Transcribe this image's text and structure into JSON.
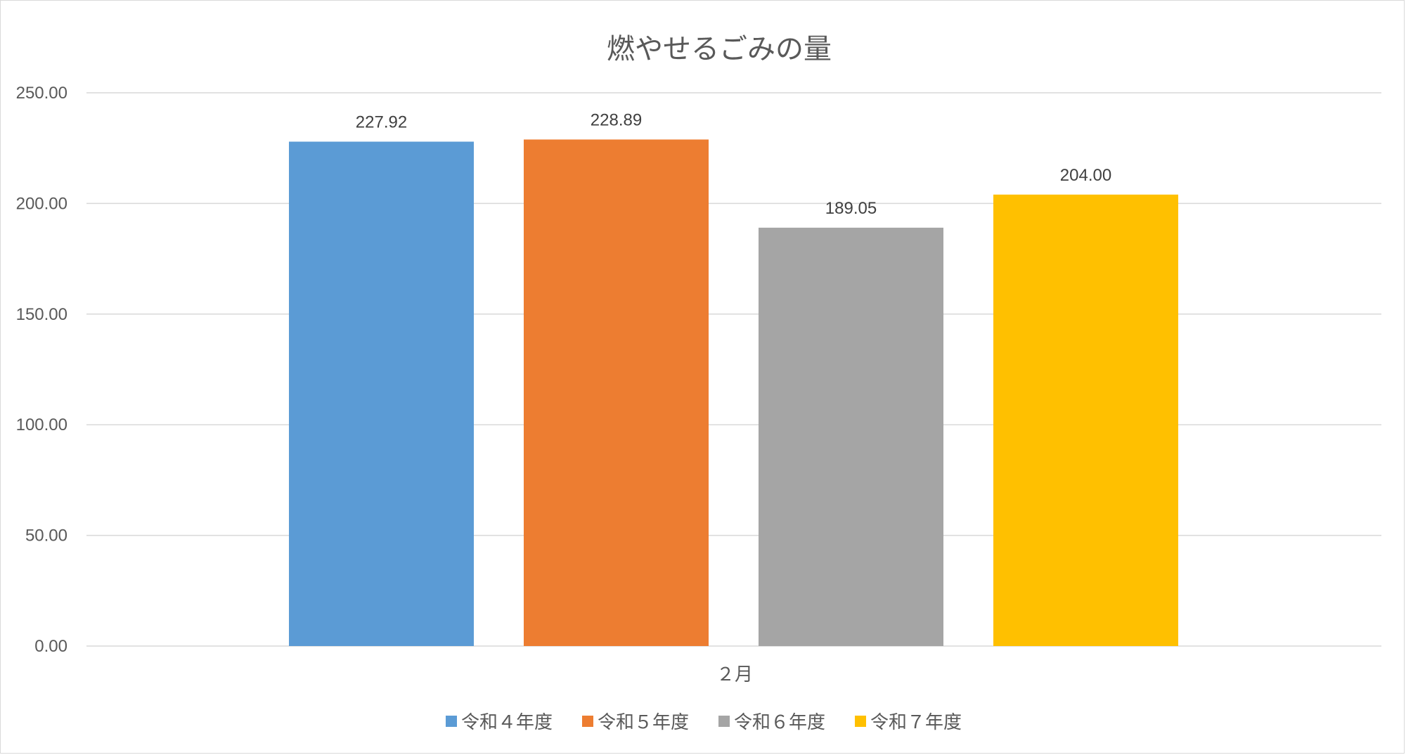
{
  "chart_data": {
    "type": "bar",
    "title": "燃やせるごみの量",
    "categories": [
      "２月"
    ],
    "series": [
      {
        "name": "令和４年度",
        "values": [
          227.92
        ],
        "color": "#5B9BD5"
      },
      {
        "name": "令和５年度",
        "values": [
          228.89
        ],
        "color": "#ED7D31"
      },
      {
        "name": "令和６年度",
        "values": [
          189.05
        ],
        "color": "#A5A5A5"
      },
      {
        "name": "令和７年度",
        "values": [
          204.0
        ],
        "color": "#FFC000"
      }
    ],
    "data_labels": [
      "227.92",
      "228.89",
      "189.05",
      "204.00"
    ],
    "y_ticks": [
      "0.00",
      "50.00",
      "100.00",
      "150.00",
      "200.00",
      "250.00"
    ],
    "ylim": [
      0,
      250
    ],
    "xlabel": "",
    "ylabel": "",
    "grid": true,
    "legend_position": "bottom",
    "gridline_color": "#d9d9d9"
  }
}
